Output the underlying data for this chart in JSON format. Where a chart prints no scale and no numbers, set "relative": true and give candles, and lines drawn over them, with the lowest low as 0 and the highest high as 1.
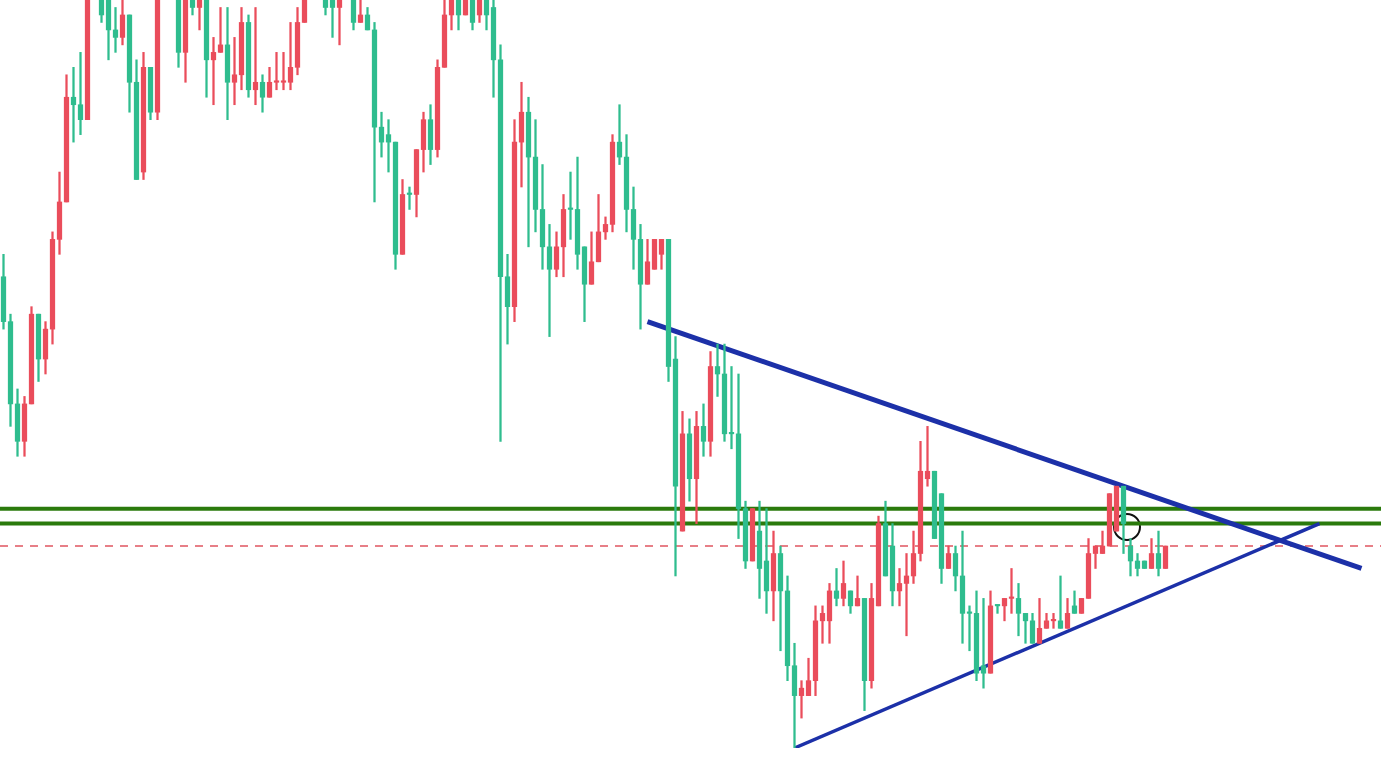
{
  "chart_data": {
    "type": "candlestick",
    "relative": true,
    "categories": [
      null,
      null,
      null,
      null,
      null,
      null,
      null,
      null,
      null,
      null,
      null,
      null,
      null,
      null,
      null,
      null,
      null,
      null,
      null,
      null,
      null,
      null,
      null,
      null,
      null,
      null,
      null,
      null,
      null,
      null,
      null,
      null,
      null,
      null,
      null,
      null,
      null,
      null,
      null,
      null,
      null,
      null,
      null,
      null,
      null,
      null,
      null,
      null,
      null,
      null,
      null,
      null,
      null,
      null,
      null,
      null,
      null,
      null,
      null,
      null,
      null,
      null,
      null,
      null,
      null,
      null,
      null,
      null,
      null,
      null,
      null,
      null,
      null,
      null,
      null,
      null,
      null,
      null,
      null,
      null,
      null,
      null,
      null,
      null,
      null,
      null,
      null,
      null,
      null,
      null,
      null,
      null,
      null,
      null,
      null,
      null,
      null,
      null,
      null,
      null,
      null,
      null,
      null,
      null,
      null,
      null,
      null,
      null,
      null,
      null,
      null,
      null,
      null,
      null,
      null,
      null,
      null,
      null,
      null,
      null,
      null,
      null,
      null,
      null,
      null,
      null,
      null,
      null,
      null,
      null,
      null,
      null,
      null,
      null,
      null,
      null,
      null,
      null,
      null,
      null,
      null,
      null,
      null,
      null,
      null,
      null,
      null,
      null,
      null,
      null,
      null,
      null,
      null,
      null,
      null,
      null,
      null,
      null,
      null,
      null,
      null,
      null,
      null,
      null,
      null,
      null,
      null,
      null,
      null,
      null,
      null,
      null,
      null,
      null,
      null,
      null,
      null,
      null,
      null,
      null,
      null,
      null,
      null,
      null,
      null,
      null,
      null,
      null,
      null,
      null,
      null,
      null,
      null,
      null,
      null
    ],
    "ohlc": [
      [
        0.63,
        0.66,
        0.56,
        0.57
      ],
      [
        0.57,
        0.58,
        0.43,
        0.46
      ],
      [
        0.46,
        0.48,
        0.39,
        0.41
      ],
      [
        0.41,
        0.47,
        0.39,
        0.46
      ],
      [
        0.46,
        0.59,
        0.46,
        0.58
      ],
      [
        0.58,
        0.58,
        0.49,
        0.52
      ],
      [
        0.52,
        0.57,
        0.5,
        0.56
      ],
      [
        0.56,
        0.69,
        0.54,
        0.68
      ],
      [
        0.68,
        0.77,
        0.66,
        0.73
      ],
      [
        0.73,
        0.9,
        0.73,
        0.87
      ],
      [
        0.87,
        0.91,
        0.81,
        0.86
      ],
      [
        0.86,
        0.93,
        0.82,
        0.84
      ],
      [
        0.84,
        1,
        0.84,
        1
      ],
      null,
      [
        1,
        1,
        0.97,
        0.98
      ],
      [
        1,
        1,
        0.92,
        0.96
      ],
      [
        0.96,
        0.99,
        0.93,
        0.95
      ],
      [
        0.95,
        1,
        0.94,
        0.98
      ],
      [
        0.98,
        0.98,
        0.85,
        0.89
      ],
      [
        0.89,
        0.92,
        0.76,
        0.76
      ],
      [
        0.77,
        0.93,
        0.76,
        0.91
      ],
      [
        0.91,
        0.91,
        0.84,
        0.85
      ],
      [
        0.85,
        1,
        0.84,
        1
      ],
      null,
      null,
      [
        1,
        1,
        0.91,
        0.93
      ],
      [
        0.93,
        1,
        0.89,
        1
      ],
      [
        1,
        1,
        0.98,
        0.99
      ],
      [
        0.99,
        1,
        0.96,
        1
      ],
      [
        1,
        1,
        0.87,
        0.92
      ],
      [
        0.92,
        0.95,
        0.86,
        0.93
      ],
      [
        0.93,
        0.99,
        0.93,
        0.94
      ],
      [
        0.94,
        0.99,
        0.84,
        0.89
      ],
      [
        0.89,
        0.95,
        0.86,
        0.9
      ],
      [
        0.9,
        0.99,
        0.88,
        0.97
      ],
      [
        0.97,
        0.98,
        0.87,
        0.88
      ],
      [
        0.88,
        0.99,
        0.86,
        0.89
      ],
      [
        0.89,
        0.9,
        0.85,
        0.87
      ],
      [
        0.87,
        0.91,
        0.87,
        0.89
      ],
      [
        0.89,
        0.93,
        0.88,
        0.89
      ],
      [
        0.89,
        0.93,
        0.88,
        0.89
      ],
      [
        0.89,
        0.97,
        0.88,
        0.91
      ],
      [
        0.91,
        0.99,
        0.9,
        0.97
      ],
      [
        0.97,
        1,
        0.97,
        1
      ],
      null,
      null,
      [
        1,
        1,
        0.98,
        0.99
      ],
      [
        1,
        1,
        0.95,
        0.99
      ],
      [
        0.99,
        1,
        0.94,
        1
      ],
      null,
      [
        1,
        1,
        0.96,
        0.97
      ],
      [
        0.97,
        1,
        0.97,
        0.98
      ],
      [
        0.98,
        0.99,
        0.96,
        0.96
      ],
      [
        0.96,
        0.97,
        0.73,
        0.83
      ],
      [
        0.83,
        0.85,
        0.79,
        0.81
      ],
      [
        0.82,
        0.84,
        0.77,
        0.81
      ],
      [
        0.81,
        0.81,
        0.64,
        0.66
      ],
      [
        0.66,
        0.76,
        0.66,
        0.74
      ],
      [
        0.74,
        0.75,
        0.72,
        0.74
      ],
      [
        0.74,
        0.8,
        0.71,
        0.8
      ],
      [
        0.8,
        0.85,
        0.77,
        0.84
      ],
      [
        0.84,
        0.86,
        0.78,
        0.8
      ],
      [
        0.8,
        0.92,
        0.79,
        0.91
      ],
      [
        0.91,
        1,
        0.91,
        0.98
      ],
      [
        0.98,
        1,
        0.96,
        1
      ],
      [
        1,
        1,
        0.96,
        0.98
      ],
      [
        0.98,
        1,
        0.98,
        1
      ],
      [
        1,
        1,
        0.96,
        0.97
      ],
      [
        0.98,
        1,
        0.97,
        1
      ],
      [
        1,
        1,
        0.96,
        0.98
      ],
      [
        0.99,
        1,
        0.87,
        0.92
      ],
      [
        0.92,
        0.94,
        0.41,
        0.63
      ],
      [
        0.63,
        0.66,
        0.54,
        0.59
      ],
      [
        0.59,
        0.84,
        0.57,
        0.81
      ],
      [
        0.81,
        0.89,
        0.75,
        0.85
      ],
      [
        0.85,
        0.87,
        0.67,
        0.79
      ],
      [
        0.79,
        0.84,
        0.69,
        0.72
      ],
      [
        0.72,
        0.78,
        0.64,
        0.67
      ],
      [
        0.67,
        0.7,
        0.55,
        0.64
      ],
      [
        0.64,
        0.69,
        0.63,
        0.67
      ],
      [
        0.67,
        0.74,
        0.63,
        0.72
      ],
      [
        0.72,
        0.77,
        0.68,
        0.72
      ],
      [
        0.72,
        0.79,
        0.64,
        0.66
      ],
      [
        0.67,
        0.67,
        0.57,
        0.62
      ],
      [
        0.62,
        0.69,
        0.62,
        0.65
      ],
      [
        0.65,
        0.74,
        0.65,
        0.69
      ],
      [
        0.69,
        0.71,
        0.68,
        0.7
      ],
      [
        0.7,
        0.82,
        0.69,
        0.81
      ],
      [
        0.81,
        0.86,
        0.78,
        0.79
      ],
      [
        0.79,
        0.82,
        0.69,
        0.72
      ],
      [
        0.72,
        0.75,
        0.64,
        0.68
      ],
      [
        0.68,
        0.7,
        0.56,
        0.62
      ],
      [
        0.62,
        0.68,
        0.62,
        0.65
      ],
      [
        0.64,
        0.68,
        0.64,
        0.68
      ],
      [
        0.66,
        0.68,
        0.64,
        0.68
      ],
      [
        0.68,
        0.68,
        0.49,
        0.51
      ],
      [
        0.52,
        0.55,
        0.23,
        0.35
      ],
      [
        0.29,
        0.45,
        0.29,
        0.42
      ],
      [
        0.42,
        0.44,
        0.33,
        0.36
      ],
      [
        0.36,
        0.45,
        0.3,
        0.43
      ],
      [
        0.43,
        0.46,
        0.39,
        0.41
      ],
      [
        0.41,
        0.53,
        0.39,
        0.51
      ],
      [
        0.51,
        0.54,
        0.47,
        0.5
      ],
      [
        0.5,
        0.54,
        0.41,
        0.42
      ],
      [
        0.42,
        0.51,
        0.4,
        0.42
      ],
      [
        0.42,
        0.5,
        0.28,
        0.32
      ],
      [
        0.32,
        0.33,
        0.24,
        0.25
      ],
      [
        0.25,
        0.32,
        0.25,
        0.32
      ],
      [
        0.29,
        0.33,
        0.2,
        0.24
      ],
      [
        0.25,
        0.32,
        0.18,
        0.21
      ],
      [
        0.21,
        0.29,
        0.17,
        0.26
      ],
      [
        0.26,
        0.27,
        0.13,
        0.21
      ],
      [
        0.21,
        0.23,
        0.09,
        0.11
      ],
      [
        0.11,
        0.14,
        0,
        0.07
      ],
      [
        0.07,
        0.09,
        0.04,
        0.08
      ],
      [
        0.07,
        0.12,
        0.07,
        0.09
      ],
      [
        0.09,
        0.19,
        0.07,
        0.17
      ],
      [
        0.17,
        0.19,
        0.14,
        0.18
      ],
      [
        0.17,
        0.22,
        0.14,
        0.21
      ],
      [
        0.21,
        0.24,
        0.19,
        0.2
      ],
      [
        0.2,
        0.25,
        0.19,
        0.22
      ],
      [
        0.21,
        0.21,
        0.18,
        0.19
      ],
      [
        0.19,
        0.23,
        0.19,
        0.2
      ],
      [
        0.2,
        0.2,
        0.05,
        0.09
      ],
      [
        0.09,
        0.22,
        0.08,
        0.2
      ],
      [
        0.19,
        0.31,
        0.19,
        0.3
      ],
      [
        0.3,
        0.33,
        0.23,
        0.23
      ],
      [
        0.27,
        0.3,
        0.19,
        0.21
      ],
      [
        0.21,
        0.24,
        0.19,
        0.22
      ],
      [
        0.22,
        0.26,
        0.15,
        0.23
      ],
      [
        0.23,
        0.29,
        0.22,
        0.26
      ],
      [
        0.26,
        0.41,
        0.25,
        0.37
      ],
      [
        0.36,
        0.43,
        0.35,
        0.37
      ],
      [
        0.37,
        0.37,
        0.28,
        0.28
      ],
      [
        0.34,
        0.34,
        0.22,
        0.24
      ],
      [
        0.24,
        0.27,
        0.24,
        0.26
      ],
      [
        0.26,
        0.27,
        0.21,
        0.23
      ],
      [
        0.23,
        0.29,
        0.14,
        0.18
      ],
      [
        0.18,
        0.19,
        0.13,
        0.18
      ],
      [
        0.18,
        0.21,
        0.09,
        0.1
      ],
      [
        0.11,
        0.2,
        0.08,
        0.1
      ],
      [
        0.1,
        0.21,
        0.1,
        0.19
      ],
      [
        0.19,
        0.19,
        0.18,
        0.19
      ],
      [
        0.19,
        0.2,
        0.17,
        0.2
      ],
      [
        0.2,
        0.24,
        0.18,
        0.2
      ],
      [
        0.2,
        0.22,
        0.15,
        0.18
      ],
      [
        0.18,
        0.18,
        0.14,
        0.17
      ],
      [
        0.17,
        0.18,
        0.14,
        0.14
      ],
      [
        0.14,
        0.2,
        0.14,
        0.16
      ],
      [
        0.16,
        0.18,
        0.16,
        0.17
      ],
      [
        0.17,
        0.18,
        0.16,
        0.17
      ],
      [
        0.17,
        0.23,
        0.16,
        0.16
      ],
      [
        0.16,
        0.2,
        0.16,
        0.18
      ],
      [
        0.19,
        0.21,
        0.18,
        0.18
      ],
      [
        0.18,
        0.2,
        0.18,
        0.2
      ],
      [
        0.2,
        0.28,
        0.2,
        0.26
      ],
      [
        0.26,
        0.27,
        0.24,
        0.27
      ],
      [
        0.26,
        0.29,
        0.26,
        0.27
      ],
      [
        0.27,
        0.34,
        0.27,
        0.34
      ],
      [
        0.29,
        0.35,
        0.29,
        0.35
      ],
      [
        0.35,
        0.35,
        0.26,
        0.3
      ],
      [
        0.27,
        0.28,
        0.23,
        0.25
      ],
      [
        0.25,
        0.26,
        0.23,
        0.24
      ],
      [
        0.25,
        0.25,
        0.24,
        0.24
      ],
      [
        0.24,
        0.28,
        0.24,
        0.26
      ],
      [
        0.26,
        0.29,
        0.23,
        0.24
      ],
      [
        0.24,
        0.27,
        0.24,
        0.27
      ],
      null,
      null,
      null,
      null,
      null,
      null,
      null,
      null,
      null,
      null,
      null,
      null,
      null,
      null,
      null,
      null,
      null,
      null,
      null,
      null,
      null,
      null,
      null,
      null,
      null,
      null,
      null,
      null
    ],
    "colors": [
      "#2fbd8e",
      "#2fbd8e",
      "#2fbd8e",
      "#ea4d5b",
      "#ea4d5b",
      "#2fbd8e",
      "#ea4d5b",
      "#ea4d5b",
      "#ea4d5b",
      "#ea4d5b",
      "#2fbd8e",
      "#2fbd8e",
      "#ea4d5b",
      null,
      "#2fbd8e",
      "#2fbd8e",
      "#2fbd8e",
      "#ea4d5b",
      "#2fbd8e",
      "#2fbd8e",
      "#ea4d5b",
      "#2fbd8e",
      "#ea4d5b",
      null,
      null,
      "#2fbd8e",
      "#ea4d5b",
      "#2fbd8e",
      "#ea4d5b",
      "#2fbd8e",
      "#ea4d5b",
      "#ea4d5b",
      "#2fbd8e",
      "#ea4d5b",
      "#ea4d5b",
      "#2fbd8e",
      "#ea4d5b",
      "#2fbd8e",
      "#ea4d5b",
      "#ea4d5b",
      "#ea4d5b",
      "#ea4d5b",
      "#ea4d5b",
      "#ea4d5b",
      null,
      null,
      "#2fbd8e",
      "#2fbd8e",
      "#ea4d5b",
      null,
      "#2fbd8e",
      "#ea4d5b",
      "#2fbd8e",
      "#2fbd8e",
      "#2fbd8e",
      "#2fbd8e",
      "#2fbd8e",
      "#ea4d5b",
      "#2fbd8e",
      "#ea4d5b",
      "#ea4d5b",
      "#2fbd8e",
      "#ea4d5b",
      "#ea4d5b",
      "#ea4d5b",
      "#2fbd8e",
      "#ea4d5b",
      "#2fbd8e",
      "#ea4d5b",
      "#2fbd8e",
      "#2fbd8e",
      "#2fbd8e",
      "#2fbd8e",
      "#ea4d5b",
      "#ea4d5b",
      "#2fbd8e",
      "#2fbd8e",
      "#2fbd8e",
      "#2fbd8e",
      "#ea4d5b",
      "#ea4d5b",
      "#2fbd8e",
      "#2fbd8e",
      "#2fbd8e",
      "#ea4d5b",
      "#ea4d5b",
      "#ea4d5b",
      "#ea4d5b",
      "#2fbd8e",
      "#2fbd8e",
      "#2fbd8e",
      "#2fbd8e",
      "#ea4d5b",
      "#ea4d5b",
      "#ea4d5b",
      "#2fbd8e",
      "#2fbd8e",
      "#ea4d5b",
      "#2fbd8e",
      "#ea4d5b",
      "#2fbd8e",
      "#ea4d5b",
      "#2fbd8e",
      "#2fbd8e",
      "#2fbd8e",
      "#2fbd8e",
      "#2fbd8e",
      "#ea4d5b",
      "#2fbd8e",
      "#2fbd8e",
      "#ea4d5b",
      "#2fbd8e",
      "#2fbd8e",
      "#2fbd8e",
      "#ea4d5b",
      "#ea4d5b",
      "#ea4d5b",
      "#ea4d5b",
      "#ea4d5b",
      "#2fbd8e",
      "#ea4d5b",
      "#2fbd8e",
      "#ea4d5b",
      "#2fbd8e",
      "#ea4d5b",
      "#ea4d5b",
      "#2fbd8e",
      "#2fbd8e",
      "#ea4d5b",
      "#ea4d5b",
      "#ea4d5b",
      "#ea4d5b",
      "#ea4d5b",
      "#2fbd8e",
      "#2fbd8e",
      "#ea4d5b",
      "#2fbd8e",
      "#2fbd8e",
      "#2fbd8e",
      "#2fbd8e",
      "#2fbd8e",
      "#ea4d5b",
      "#2fbd8e",
      "#ea4d5b",
      "#ea4d5b",
      "#2fbd8e",
      "#2fbd8e",
      "#2fbd8e",
      "#ea4d5b",
      "#ea4d5b",
      "#ea4d5b",
      "#2fbd8e",
      "#ea4d5b",
      "#2fbd8e",
      "#ea4d5b",
      "#ea4d5b",
      "#ea4d5b",
      "#ea4d5b",
      "#ea4d5b",
      "#ea4d5b",
      "#2fbd8e",
      "#2fbd8e",
      "#2fbd8e",
      "#2fbd8e",
      "#ea4d5b",
      "#2fbd8e",
      "#ea4d5b",
      null,
      null,
      null,
      null,
      null,
      null,
      null,
      null,
      null,
      null,
      null,
      null,
      null,
      null,
      null,
      null,
      null,
      null,
      null,
      null,
      null,
      null,
      null,
      null,
      null,
      null,
      null,
      null
    ],
    "series": [
      {
        "type": "line",
        "color": "#1c30a8",
        "values": [
          null,
          null,
          null,
          null,
          null,
          null,
          null,
          null,
          null,
          null,
          null,
          null,
          null,
          null,
          null,
          null,
          null,
          null,
          null,
          null,
          null,
          null,
          null,
          null,
          null,
          null,
          null,
          null,
          null,
          null,
          null,
          null,
          null,
          null,
          null,
          null,
          null,
          null,
          null,
          null,
          null,
          null,
          null,
          null,
          null,
          null,
          null,
          null,
          null,
          null,
          null,
          null,
          null,
          null,
          null,
          null,
          null,
          null,
          null,
          null,
          null,
          null,
          null,
          null,
          null,
          null,
          null,
          null,
          null,
          null,
          null,
          null,
          null,
          null,
          null,
          null,
          null,
          null,
          null,
          null,
          null,
          null,
          null,
          null,
          null,
          null,
          null,
          null,
          null,
          null,
          null,
          null,
          0.57,
          null,
          null,
          null,
          null,
          null,
          null,
          null,
          null,
          null,
          null,
          null,
          null,
          null,
          null,
          null,
          null,
          null,
          null,
          null,
          null,
          null,
          null,
          null,
          null,
          null,
          null,
          null,
          null,
          null,
          null,
          null,
          null,
          null,
          null,
          null,
          null,
          null,
          null,
          null,
          null,
          null,
          null,
          null,
          null,
          null,
          null,
          null,
          null,
          null,
          null,
          null,
          null,
          null,
          null,
          null,
          null,
          null,
          null,
          null,
          null,
          null,
          null,
          null,
          null,
          null,
          null,
          null,
          null,
          null,
          null,
          null,
          null,
          null,
          null,
          null,
          null,
          null,
          null,
          null,
          null,
          null,
          null,
          null,
          null,
          null,
          null,
          null,
          null,
          null,
          null,
          null,
          null,
          null,
          null,
          null,
          null,
          null,
          null,
          null,
          null,
          null,
          0.24
        ]
      },
      {
        "type": "line",
        "color": "#1c30a8",
        "values": [
          null,
          null,
          null,
          null,
          null,
          null,
          null,
          null,
          null,
          null,
          null,
          null,
          null,
          null,
          null,
          null,
          null,
          null,
          null,
          null,
          null,
          null,
          null,
          null,
          null,
          null,
          null,
          null,
          null,
          null,
          null,
          null,
          null,
          null,
          null,
          null,
          null,
          null,
          null,
          null,
          null,
          null,
          null,
          null,
          null,
          null,
          null,
          null,
          null,
          null,
          null,
          null,
          null,
          null,
          null,
          null,
          null,
          null,
          null,
          null,
          null,
          null,
          null,
          null,
          null,
          null,
          null,
          null,
          null,
          null,
          null,
          null,
          null,
          null,
          null,
          null,
          null,
          null,
          null,
          null,
          null,
          null,
          null,
          null,
          null,
          null,
          null,
          null,
          null,
          null,
          null,
          null,
          null,
          null,
          null,
          null,
          null,
          null,
          null,
          null,
          null,
          null,
          null,
          null,
          null,
          null,
          null,
          null,
          null,
          null,
          null,
          null,
          null,
          0,
          null,
          null,
          null,
          null,
          null,
          null,
          null,
          null,
          null,
          null,
          null,
          null,
          null,
          null,
          null,
          null,
          null,
          null,
          null,
          null,
          null,
          null,
          null,
          null,
          null,
          null,
          null,
          null,
          null,
          null,
          null,
          null,
          null,
          null,
          null,
          null,
          null,
          null,
          null,
          null,
          null,
          null,
          null,
          null,
          null,
          null,
          null,
          null,
          null,
          null,
          null,
          null,
          null,
          null,
          null,
          null,
          null,
          null,
          null,
          null,
          null,
          null,
          null,
          null,
          null,
          null,
          null,
          null,
          null,
          null,
          null,
          null,
          null,
          null,
          0.3,
          null,
          null,
          null,
          null,
          null,
          null
        ]
      }
    ],
    "ref_lines": [
      {
        "axis": "y",
        "value": 0.32,
        "color": "#2a7a0c"
      },
      {
        "axis": "y",
        "value": 0.3,
        "color": "#2a7a0c"
      },
      {
        "axis": "y",
        "value": 0.27,
        "color": "#e05560",
        "line_style": "dashed"
      }
    ]
  }
}
